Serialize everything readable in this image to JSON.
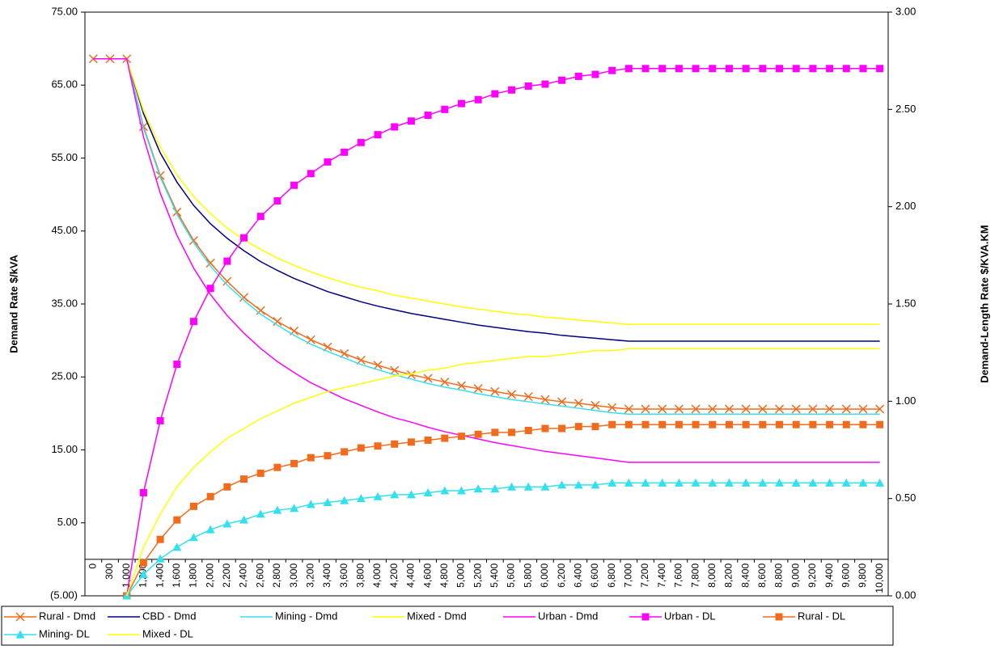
{
  "chart_data": {
    "type": "line",
    "y_label": "Demand Rate $/kVA",
    "y2_label": "Demand-Length Rate $/KVA.KM",
    "categories": [
      "0",
      "300",
      "1,000",
      "1,200",
      "1,400",
      "1,600",
      "1,800",
      "2,000",
      "2,200",
      "2,400",
      "2,600",
      "2,800",
      "3,000",
      "3,200",
      "3,400",
      "3,600",
      "3,800",
      "4,000",
      "4,200",
      "4,400",
      "4,600",
      "4,800",
      "5,000",
      "5,200",
      "5,400",
      "5,600",
      "5,800",
      "6,000",
      "6,200",
      "6,400",
      "6,600",
      "6,800",
      "7,000",
      "7,200",
      "7,400",
      "7,600",
      "7,800",
      "8,000",
      "8,200",
      "8,400",
      "8,600",
      "8,800",
      "9,000",
      "9,200",
      "9,400",
      "9,600",
      "9,800",
      "10,000"
    ],
    "ylim": [
      -5,
      75
    ],
    "yticks": [
      {
        "value": -5,
        "label": "(5.00)"
      },
      {
        "value": 5,
        "label": "5.00"
      },
      {
        "value": 15,
        "label": "15.00"
      },
      {
        "value": 25,
        "label": "25.00"
      },
      {
        "value": 35,
        "label": "35.00"
      },
      {
        "value": 45,
        "label": "45.00"
      },
      {
        "value": 55,
        "label": "55.00"
      },
      {
        "value": 65,
        "label": "65.00"
      },
      {
        "value": 75,
        "label": "75.00"
      }
    ],
    "y2lim": [
      0,
      3
    ],
    "y2ticks": [
      {
        "value": 0,
        "label": "0.00"
      },
      {
        "value": 0.5,
        "label": "0.50"
      },
      {
        "value": 1,
        "label": "1.00"
      },
      {
        "value": 1.5,
        "label": "1.50"
      },
      {
        "value": 2,
        "label": "2.00"
      },
      {
        "value": 2.5,
        "label": "2.50"
      },
      {
        "value": 3,
        "label": "3.00"
      }
    ],
    "grid": false,
    "legend": "bottom",
    "series": [
      {
        "name": "Rural - Dmd",
        "color": "#f26b1d",
        "marker": "x",
        "values": [
          68.6,
          68.6,
          68.6,
          59.3,
          52.6,
          47.6,
          43.7,
          40.6,
          38.1,
          35.9,
          34.1,
          32.6,
          31.3,
          30.1,
          29.1,
          28.2,
          27.3,
          26.6,
          25.9,
          25.3,
          24.8,
          24.3,
          23.8,
          23.4,
          23.0,
          22.6,
          22.3,
          21.9,
          21.6,
          21.4,
          21.1,
          20.8,
          20.6,
          20.6,
          20.6,
          20.6,
          20.6,
          20.6,
          20.6,
          20.6,
          20.6,
          20.6,
          20.6,
          20.6,
          20.6,
          20.6,
          20.6,
          20.6
        ]
      },
      {
        "name": "CBD - Dmd",
        "color": "#000080",
        "marker": "none",
        "values": [
          68.6,
          68.6,
          68.6,
          61.1,
          55.7,
          51.7,
          48.5,
          46.0,
          44.0,
          42.3,
          40.8,
          39.6,
          38.5,
          37.6,
          36.7,
          36.0,
          35.3,
          34.7,
          34.2,
          33.7,
          33.3,
          32.9,
          32.5,
          32.1,
          31.8,
          31.5,
          31.2,
          31.0,
          30.7,
          30.5,
          30.3,
          30.1,
          29.9,
          29.9,
          29.9,
          29.9,
          29.9,
          29.9,
          29.9,
          29.9,
          29.9,
          29.9,
          29.9,
          29.9,
          29.9,
          29.9,
          29.9,
          29.9
        ]
      },
      {
        "name": "Mining - Dmd",
        "color": "#33e0ee",
        "marker": "none",
        "values": [
          68.6,
          68.6,
          68.6,
          59.1,
          52.4,
          47.3,
          43.4,
          40.2,
          37.6,
          35.5,
          33.6,
          32.1,
          30.7,
          29.5,
          28.5,
          27.6,
          26.7,
          26.0,
          25.3,
          24.7,
          24.1,
          23.6,
          23.2,
          22.7,
          22.3,
          21.9,
          21.6,
          21.3,
          21.0,
          20.7,
          20.4,
          20.1,
          19.9,
          19.9,
          19.9,
          19.9,
          19.9,
          19.9,
          19.9,
          19.9,
          19.9,
          19.9,
          19.9,
          19.9,
          19.9,
          19.9,
          19.9,
          19.9
        ]
      },
      {
        "name": "Mixed - Dmd",
        "color": "#ffff00",
        "marker": "none",
        "values": [
          68.6,
          68.6,
          68.6,
          61.5,
          56.5,
          52.7,
          49.7,
          47.4,
          45.4,
          43.8,
          42.5,
          41.3,
          40.3,
          39.4,
          38.6,
          37.9,
          37.3,
          36.8,
          36.2,
          35.8,
          35.4,
          35.0,
          34.6,
          34.3,
          34.0,
          33.7,
          33.5,
          33.2,
          33.0,
          32.8,
          32.6,
          32.4,
          32.2,
          32.2,
          32.2,
          32.2,
          32.2,
          32.2,
          32.2,
          32.2,
          32.2,
          32.2,
          32.2,
          32.2,
          32.2,
          32.2,
          32.2,
          32.2
        ]
      },
      {
        "name": "Urban - Dmd",
        "color": "#ff00ff",
        "marker": "none",
        "values": [
          68.6,
          68.6,
          68.6,
          57.9,
          50.2,
          44.4,
          39.9,
          36.3,
          33.4,
          31.0,
          28.9,
          27.1,
          25.6,
          24.2,
          23.1,
          22.0,
          21.1,
          20.2,
          19.4,
          18.8,
          18.1,
          17.5,
          17.0,
          16.5,
          16.0,
          15.6,
          15.2,
          14.8,
          14.5,
          14.2,
          13.9,
          13.6,
          13.3,
          13.3,
          13.3,
          13.3,
          13.3,
          13.3,
          13.3,
          13.3,
          13.3,
          13.3,
          13.3,
          13.3,
          13.3,
          13.3,
          13.3,
          13.3
        ]
      },
      {
        "name": "Urban - DL",
        "color": "#ff00ff",
        "marker": "square",
        "axis": "y2",
        "values": [
          null,
          null,
          0,
          0.53,
          0.9,
          1.19,
          1.41,
          1.58,
          1.72,
          1.84,
          1.95,
          2.03,
          2.11,
          2.17,
          2.23,
          2.28,
          2.33,
          2.37,
          2.41,
          2.44,
          2.47,
          2.5,
          2.53,
          2.55,
          2.58,
          2.6,
          2.62,
          2.63,
          2.65,
          2.67,
          2.68,
          2.7,
          2.71,
          2.71,
          2.71,
          2.71,
          2.71,
          2.71,
          2.71,
          2.71,
          2.71,
          2.71,
          2.71,
          2.71,
          2.71,
          2.71,
          2.71,
          2.71
        ]
      },
      {
        "name": "Rural - DL",
        "color": "#f26b1d",
        "marker": "square",
        "axis": "y2",
        "values": [
          null,
          null,
          0,
          0.17,
          0.29,
          0.39,
          0.46,
          0.51,
          0.56,
          0.6,
          0.63,
          0.66,
          0.68,
          0.71,
          0.72,
          0.74,
          0.76,
          0.77,
          0.78,
          0.79,
          0.8,
          0.81,
          0.82,
          0.83,
          0.84,
          0.84,
          0.85,
          0.86,
          0.86,
          0.87,
          0.87,
          0.88,
          0.88,
          0.88,
          0.88,
          0.88,
          0.88,
          0.88,
          0.88,
          0.88,
          0.88,
          0.88,
          0.88,
          0.88,
          0.88,
          0.88,
          0.88,
          0.88
        ]
      },
      {
        "name": "Mining- DL",
        "color": "#33e0ee",
        "marker": "triangle",
        "axis": "y2",
        "values": [
          null,
          null,
          0,
          0.11,
          0.19,
          0.25,
          0.3,
          0.34,
          0.37,
          0.39,
          0.42,
          0.44,
          0.45,
          0.47,
          0.48,
          0.49,
          0.5,
          0.51,
          0.52,
          0.52,
          0.53,
          0.54,
          0.54,
          0.55,
          0.55,
          0.56,
          0.56,
          0.56,
          0.57,
          0.57,
          0.57,
          0.58,
          0.58,
          0.58,
          0.58,
          0.58,
          0.58,
          0.58,
          0.58,
          0.58,
          0.58,
          0.58,
          0.58,
          0.58,
          0.58,
          0.58,
          0.58,
          0.58
        ]
      },
      {
        "name": "Mixed - DL",
        "color": "#ffff00",
        "marker": "none",
        "axis": "y2",
        "values": [
          null,
          null,
          0,
          0.25,
          0.42,
          0.56,
          0.66,
          0.74,
          0.81,
          0.86,
          0.91,
          0.95,
          0.99,
          1.02,
          1.05,
          1.07,
          1.09,
          1.11,
          1.13,
          1.14,
          1.16,
          1.17,
          1.19,
          1.2,
          1.21,
          1.22,
          1.23,
          1.23,
          1.24,
          1.25,
          1.26,
          1.26,
          1.27,
          1.27,
          1.27,
          1.27,
          1.27,
          1.27,
          1.27,
          1.27,
          1.27,
          1.27,
          1.27,
          1.27,
          1.27,
          1.27,
          1.27,
          1.27
        ]
      }
    ]
  }
}
